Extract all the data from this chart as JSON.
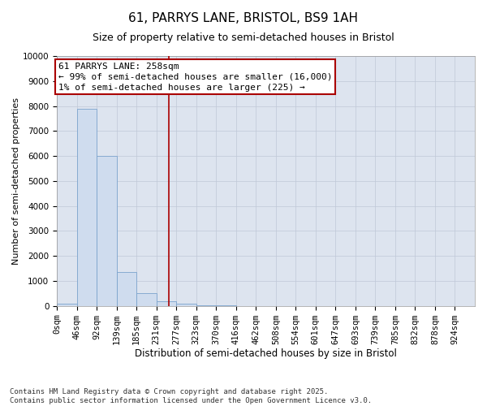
{
  "title_line1": "61, PARRYS LANE, BRISTOL, BS9 1AH",
  "title_line2": "Size of property relative to semi-detached houses in Bristol",
  "xlabel": "Distribution of semi-detached houses by size in Bristol",
  "ylabel": "Number of semi-detached properties",
  "bar_labels": [
    "0sqm",
    "46sqm",
    "92sqm",
    "139sqm",
    "185sqm",
    "231sqm",
    "277sqm",
    "323sqm",
    "370sqm",
    "416sqm",
    "462sqm",
    "508sqm",
    "554sqm",
    "601sqm",
    "647sqm",
    "693sqm",
    "739sqm",
    "785sqm",
    "832sqm",
    "878sqm",
    "924sqm"
  ],
  "bar_values": [
    100,
    7900,
    6000,
    1350,
    500,
    200,
    100,
    30,
    10,
    5,
    2,
    1,
    1,
    0,
    0,
    0,
    0,
    0,
    0,
    0,
    0
  ],
  "bar_color": "#cfdcee",
  "bar_edge_color": "#7ba3cd",
  "ylim": [
    0,
    10000
  ],
  "yticks": [
    0,
    1000,
    2000,
    3000,
    4000,
    5000,
    6000,
    7000,
    8000,
    9000,
    10000
  ],
  "bin_width": 46,
  "property_size_bin": 5,
  "vline_x": 258,
  "vline_color": "#aa0000",
  "annotation_text_line1": "61 PARRYS LANE: 258sqm",
  "annotation_text_line2": "← 99% of semi-detached houses are smaller (16,000)",
  "annotation_text_line3": "1% of semi-detached houses are larger (225) →",
  "annotation_box_color": "#ffffff",
  "annotation_box_edge": "#aa0000",
  "grid_color": "#c0c8d8",
  "bg_color": "#dde4ef",
  "footer_line1": "Contains HM Land Registry data © Crown copyright and database right 2025.",
  "footer_line2": "Contains public sector information licensed under the Open Government Licence v3.0.",
  "title_fontsize": 11,
  "subtitle_fontsize": 9,
  "tick_fontsize": 7.5,
  "label_fontsize": 8.5,
  "ylabel_fontsize": 8,
  "footer_fontsize": 6.5,
  "annotation_fontsize": 8
}
